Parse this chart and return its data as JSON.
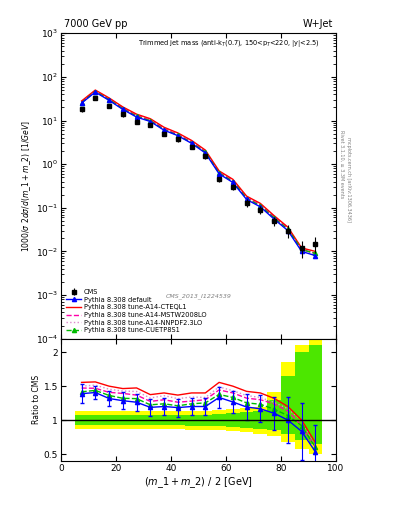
{
  "title_left": "7000 GeV pp",
  "title_right": "W+Jet",
  "cms_label": "CMS_2013_I1224539",
  "xlabel": "(m_1 + m_2) / 2 [GeV]",
  "ylabel": "1000/σ 2dσ/d(m_1 + m_2) [1/GeV]",
  "ylabel_ratio": "Ratio to CMS",
  "x_data": [
    7.5,
    12.5,
    17.5,
    22.5,
    27.5,
    32.5,
    37.5,
    42.5,
    47.5,
    52.5,
    57.5,
    62.5,
    67.5,
    72.5,
    77.5,
    82.5,
    87.5,
    92.5
  ],
  "cms_y": [
    18.0,
    32.0,
    22.0,
    14.0,
    9.5,
    8.0,
    5.0,
    3.8,
    2.5,
    1.5,
    0.45,
    0.3,
    0.13,
    0.09,
    0.05,
    0.03,
    0.012,
    0.015
  ],
  "cms_yerr_lo": [
    2.5,
    3.0,
    2.5,
    1.8,
    1.2,
    1.0,
    0.6,
    0.5,
    0.3,
    0.18,
    0.07,
    0.05,
    0.025,
    0.018,
    0.012,
    0.01,
    0.005,
    0.006
  ],
  "cms_yerr_hi": [
    2.5,
    3.0,
    2.5,
    1.8,
    1.2,
    1.0,
    0.6,
    0.5,
    0.3,
    0.18,
    0.07,
    0.05,
    0.025,
    0.018,
    0.012,
    0.01,
    0.005,
    0.006
  ],
  "cms_rel_err_lo": [
    0.139,
    0.094,
    0.114,
    0.129,
    0.126,
    0.125,
    0.12,
    0.132,
    0.12,
    0.12,
    0.156,
    0.167,
    0.192,
    0.2,
    0.24,
    0.333,
    0.417,
    0.4
  ],
  "cms_rel_err_hi": [
    0.139,
    0.094,
    0.114,
    0.129,
    0.126,
    0.125,
    0.12,
    0.132,
    0.12,
    0.12,
    0.156,
    0.167,
    0.192,
    0.2,
    0.24,
    0.333,
    0.417,
    0.4
  ],
  "default_y": [
    25.0,
    45.0,
    29.0,
    18.0,
    12.0,
    9.5,
    6.0,
    4.5,
    3.0,
    1.8,
    0.6,
    0.38,
    0.155,
    0.105,
    0.055,
    0.03,
    0.01,
    0.008
  ],
  "cteql1_y": [
    28.0,
    50.0,
    33.0,
    20.5,
    14.0,
    11.0,
    7.0,
    5.2,
    3.5,
    2.1,
    0.7,
    0.45,
    0.185,
    0.126,
    0.066,
    0.036,
    0.012,
    0.01
  ],
  "mstw_y": [
    26.5,
    47.0,
    31.0,
    19.5,
    13.0,
    10.2,
    6.5,
    4.8,
    3.2,
    1.95,
    0.65,
    0.42,
    0.172,
    0.117,
    0.062,
    0.034,
    0.011,
    0.009
  ],
  "nnpdf_y": [
    27.0,
    48.5,
    32.0,
    20.0,
    13.5,
    10.6,
    6.8,
    5.0,
    3.35,
    2.0,
    0.67,
    0.43,
    0.177,
    0.12,
    0.063,
    0.035,
    0.012,
    0.009
  ],
  "cuetp8s1_y": [
    25.5,
    46.0,
    30.0,
    18.5,
    12.5,
    9.8,
    6.2,
    4.6,
    3.1,
    1.88,
    0.62,
    0.4,
    0.163,
    0.111,
    0.058,
    0.032,
    0.011,
    0.009
  ],
  "band_x_edges": [
    5,
    10,
    15,
    20,
    25,
    30,
    35,
    40,
    45,
    50,
    55,
    60,
    65,
    70,
    75,
    80,
    85,
    90,
    95
  ],
  "band_green_lo": [
    0.93,
    0.93,
    0.93,
    0.93,
    0.93,
    0.93,
    0.93,
    0.93,
    0.92,
    0.92,
    0.91,
    0.9,
    0.88,
    0.87,
    0.86,
    0.8,
    0.7,
    0.65
  ],
  "band_green_hi": [
    1.07,
    1.07,
    1.07,
    1.07,
    1.07,
    1.07,
    1.07,
    1.07,
    1.08,
    1.08,
    1.09,
    1.1,
    1.12,
    1.13,
    1.3,
    1.65,
    2.0,
    2.1
  ],
  "band_yellow_lo": [
    0.87,
    0.87,
    0.87,
    0.87,
    0.87,
    0.87,
    0.87,
    0.87,
    0.86,
    0.86,
    0.85,
    0.84,
    0.82,
    0.8,
    0.76,
    0.68,
    0.58,
    0.5
  ],
  "band_yellow_hi": [
    1.13,
    1.13,
    1.13,
    1.13,
    1.13,
    1.13,
    1.13,
    1.13,
    1.14,
    1.14,
    1.15,
    1.16,
    1.18,
    1.2,
    1.42,
    1.85,
    2.1,
    2.2
  ],
  "color_default": "#0000ff",
  "color_cteql1": "#ff0000",
  "color_mstw": "#ff00aa",
  "color_nnpdf": "#dd88cc",
  "color_cuetp8s1": "#00bb00",
  "color_cms": "#000000",
  "color_green_band": "#00dd00",
  "color_yellow_band": "#ffff00",
  "xlim": [
    0,
    100
  ],
  "ylim_main": [
    0.0001,
    1000.0
  ],
  "ylim_ratio": [
    0.4,
    2.2
  ]
}
